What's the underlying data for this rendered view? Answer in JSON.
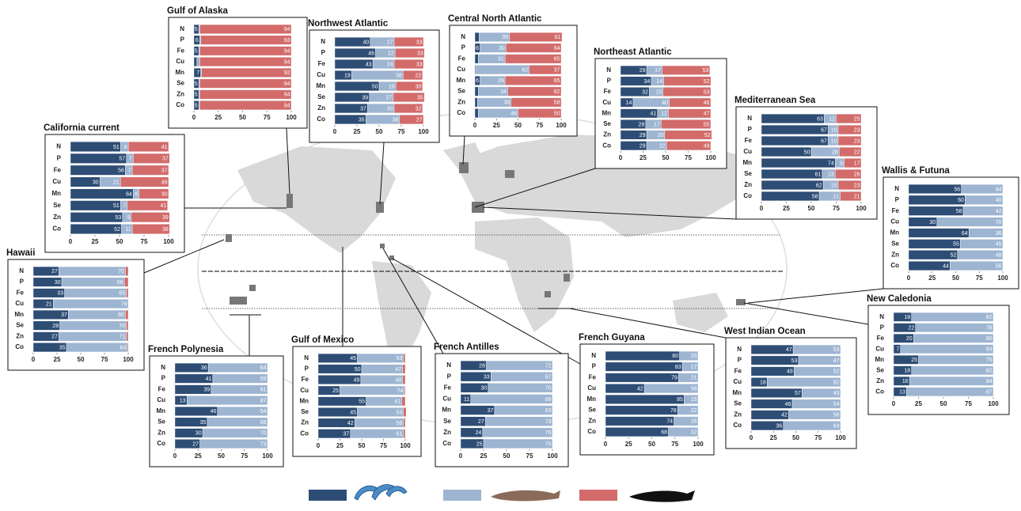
{
  "chart_data": [
    {
      "type": "bar",
      "title": "Gulf of Alaska",
      "categories": [
        "N",
        "P",
        "Fe",
        "Cu",
        "Mn",
        "Se",
        "Zn",
        "Co"
      ],
      "xlim": [
        0,
        100
      ],
      "xticks": [
        0,
        25,
        50,
        75,
        100
      ],
      "series": [
        {
          "color": "#2e4d75",
          "values": [
            5,
            6,
            5,
            3,
            7,
            5,
            5,
            5
          ]
        },
        {
          "color": "#9db5d1",
          "values": [
            1,
            1,
            1,
            3,
            1,
            1,
            1,
            1
          ]
        },
        {
          "color": "#d36b6b",
          "values": [
            94,
            93,
            94,
            94,
            92,
            94,
            94,
            94
          ]
        }
      ]
    },
    {
      "type": "bar",
      "title": "Northwest Atlantic",
      "categories": [
        "N",
        "P",
        "Fe",
        "Cu",
        "Mn",
        "Se",
        "Zn",
        "Co"
      ],
      "xlim": [
        0,
        100
      ],
      "xticks": [
        0,
        25,
        50,
        75,
        100
      ],
      "series": [
        {
          "color": "#2e4d75",
          "values": [
            40,
            46,
            43,
            19,
            50,
            39,
            37,
            35
          ]
        },
        {
          "color": "#9db5d1",
          "values": [
            27,
            22,
            24,
            58,
            19,
            27,
            30,
            38
          ]
        },
        {
          "color": "#d36b6b",
          "values": [
            33,
            33,
            33,
            22,
            30,
            35,
            32,
            27
          ]
        }
      ]
    },
    {
      "type": "bar",
      "title": "Central North Atlantic",
      "categories": [
        "N",
        "P",
        "Fe",
        "Cu",
        "Mn",
        "Se",
        "Zn",
        "Co"
      ],
      "xlim": [
        0,
        100
      ],
      "xticks": [
        0,
        25,
        50,
        75,
        100
      ],
      "series": [
        {
          "color": "#2e4d75",
          "values": [
            5,
            6,
            4,
            1,
            6,
            4,
            3,
            4
          ]
        },
        {
          "color": "#9db5d1",
          "values": [
            35,
            30,
            31,
            62,
            29,
            34,
            39,
            46
          ]
        },
        {
          "color": "#d36b6b",
          "values": [
            61,
            64,
            65,
            37,
            65,
            62,
            58,
            50
          ]
        }
      ]
    },
    {
      "type": "bar",
      "title": "Northeast Atlantic",
      "categories": [
        "N",
        "P",
        "Fe",
        "Cu",
        "Mn",
        "Se",
        "Zn",
        "Co"
      ],
      "xlim": [
        0,
        100
      ],
      "xticks": [
        0,
        25,
        50,
        75,
        100
      ],
      "series": [
        {
          "color": "#2e4d75",
          "values": [
            29,
            34,
            32,
            14,
            41,
            28,
            29,
            29
          ]
        },
        {
          "color": "#9db5d1",
          "values": [
            17,
            14,
            15,
            40,
            12,
            17,
            20,
            22
          ]
        },
        {
          "color": "#d36b6b",
          "values": [
            53,
            52,
            53,
            46,
            47,
            55,
            52,
            49
          ]
        }
      ]
    },
    {
      "type": "bar",
      "title": "Mediterranean Sea",
      "categories": [
        "N",
        "P",
        "Fe",
        "Cu",
        "Mn",
        "Se",
        "Zn",
        "Co"
      ],
      "xlim": [
        0,
        100
      ],
      "xticks": [
        0,
        25,
        50,
        75,
        100
      ],
      "series": [
        {
          "color": "#2e4d75",
          "values": [
            63,
            67,
            67,
            50,
            74,
            61,
            62,
            58
          ]
        },
        {
          "color": "#9db5d1",
          "values": [
            12,
            10,
            10,
            28,
            9,
            13,
            15,
            21
          ]
        },
        {
          "color": "#d36b6b",
          "values": [
            25,
            23,
            23,
            22,
            17,
            26,
            23,
            21
          ]
        }
      ]
    },
    {
      "type": "bar",
      "title": "Wallis & Futuna",
      "categories": [
        "N",
        "P",
        "Fe",
        "Cu",
        "Mn",
        "Se",
        "Zn",
        "Co"
      ],
      "xlim": [
        0,
        100
      ],
      "xticks": [
        0,
        25,
        50,
        75,
        100
      ],
      "series": [
        {
          "color": "#2e4d75",
          "values": [
            56,
            60,
            58,
            30,
            64,
            55,
            52,
            44
          ]
        },
        {
          "color": "#9db5d1",
          "values": [
            44,
            40,
            42,
            70,
            36,
            45,
            48,
            56
          ]
        }
      ]
    },
    {
      "type": "bar",
      "title": "California current",
      "categories": [
        "N",
        "P",
        "Fe",
        "Cu",
        "Mn",
        "Se",
        "Zn",
        "Co"
      ],
      "xlim": [
        0,
        100
      ],
      "xticks": [
        0,
        25,
        50,
        75,
        100
      ],
      "series": [
        {
          "color": "#2e4d75",
          "values": [
            51,
            57,
            56,
            30,
            64,
            51,
            53,
            52
          ]
        },
        {
          "color": "#9db5d1",
          "values": [
            8,
            7,
            7,
            21,
            6,
            7,
            9,
            11
          ]
        },
        {
          "color": "#d36b6b",
          "values": [
            41,
            37,
            37,
            49,
            30,
            41,
            39,
            38
          ]
        }
      ]
    },
    {
      "type": "bar",
      "title": "Hawaii",
      "categories": [
        "N",
        "P",
        "Fe",
        "Cu",
        "Mn",
        "Se",
        "Zn",
        "Co"
      ],
      "xlim": [
        0,
        100
      ],
      "xticks": [
        0,
        25,
        50,
        75,
        100
      ],
      "series": [
        {
          "color": "#2e4d75",
          "values": [
            27,
            30,
            33,
            21,
            37,
            28,
            27,
            35
          ]
        },
        {
          "color": "#9db5d1",
          "values": [
            70,
            66,
            65,
            79,
            60,
            70,
            71,
            64
          ]
        },
        {
          "color": "#d36b6b",
          "values": [
            3,
            4,
            2,
            0,
            3,
            2,
            2,
            1
          ]
        }
      ]
    },
    {
      "type": "bar",
      "title": "French Polynesia",
      "categories": [
        "N",
        "P",
        "Fe",
        "Cu",
        "Mn",
        "Se",
        "Zn",
        "Co"
      ],
      "xlim": [
        0,
        100
      ],
      "xticks": [
        0,
        25,
        50,
        75,
        100
      ],
      "series": [
        {
          "color": "#2e4d75",
          "values": [
            36,
            41,
            39,
            13,
            46,
            35,
            30,
            27
          ]
        },
        {
          "color": "#9db5d1",
          "values": [
            64,
            59,
            61,
            87,
            54,
            65,
            70,
            73
          ]
        }
      ]
    },
    {
      "type": "bar",
      "title": "Gulf of Mexico",
      "categories": [
        "N",
        "P",
        "Fe",
        "Cu",
        "Mn",
        "Se",
        "Zn",
        "Co"
      ],
      "xlim": [
        0,
        100
      ],
      "xticks": [
        0,
        25,
        50,
        75,
        100
      ],
      "series": [
        {
          "color": "#2e4d75",
          "values": [
            45,
            50,
            49,
            25,
            55,
            45,
            42,
            37
          ]
        },
        {
          "color": "#9db5d1",
          "values": [
            53,
            47,
            48,
            74,
            41,
            53,
            56,
            61
          ]
        },
        {
          "color": "#d36b6b",
          "values": [
            2,
            3,
            3,
            1,
            4,
            3,
            2,
            2
          ]
        }
      ]
    },
    {
      "type": "bar",
      "title": "French Antilles",
      "categories": [
        "N",
        "P",
        "Fe",
        "Cu",
        "Mn",
        "Se",
        "Zn",
        "Co"
      ],
      "xlim": [
        0,
        100
      ],
      "xticks": [
        0,
        25,
        50,
        75,
        100
      ],
      "series": [
        {
          "color": "#2e4d75",
          "values": [
            28,
            33,
            30,
            11,
            37,
            27,
            24,
            25
          ]
        },
        {
          "color": "#9db5d1",
          "values": [
            72,
            67,
            70,
            89,
            63,
            73,
            76,
            75
          ]
        }
      ]
    },
    {
      "type": "bar",
      "title": "French Guyana",
      "categories": [
        "N",
        "P",
        "Fe",
        "Cu",
        "Mn",
        "Se",
        "Zn",
        "Co"
      ],
      "xlim": [
        0,
        100
      ],
      "xticks": [
        0,
        25,
        50,
        75,
        100
      ],
      "series": [
        {
          "color": "#2e4d75",
          "values": [
            80,
            83,
            79,
            42,
            85,
            78,
            74,
            68
          ]
        },
        {
          "color": "#9db5d1",
          "values": [
            20,
            17,
            21,
            58,
            15,
            22,
            26,
            32
          ]
        }
      ]
    },
    {
      "type": "bar",
      "title": "West Indian Ocean",
      "categories": [
        "N",
        "P",
        "Fe",
        "Cu",
        "Mn",
        "Se",
        "Zn",
        "Co"
      ],
      "xlim": [
        0,
        100
      ],
      "xticks": [
        0,
        25,
        50,
        75,
        100
      ],
      "series": [
        {
          "color": "#2e4d75",
          "values": [
            47,
            53,
            48,
            18,
            57,
            46,
            42,
            36
          ]
        },
        {
          "color": "#9db5d1",
          "values": [
            53,
            47,
            52,
            82,
            43,
            54,
            58,
            64
          ]
        }
      ]
    },
    {
      "type": "bar",
      "title": "New Caledonia",
      "categories": [
        "N",
        "P",
        "Fe",
        "Cu",
        "Mn",
        "Se",
        "Zn",
        "Co"
      ],
      "xlim": [
        0,
        100
      ],
      "xticks": [
        0,
        25,
        50,
        75,
        100
      ],
      "series": [
        {
          "color": "#2e4d75",
          "values": [
            18,
            22,
            20,
            7,
            25,
            18,
            16,
            13
          ]
        },
        {
          "color": "#9db5d1",
          "values": [
            82,
            78,
            80,
            93,
            75,
            82,
            84,
            87
          ]
        }
      ]
    }
  ]
}
